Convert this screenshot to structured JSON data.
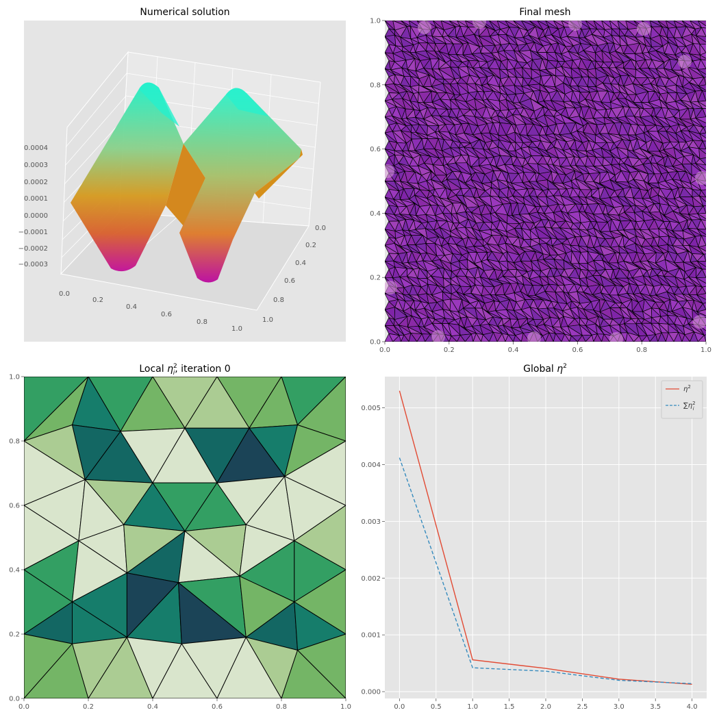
{
  "figure": {
    "panels": [
      {
        "title": "Numerical solution"
      },
      {
        "title": "Final mesh"
      },
      {
        "title": "Local η_i², iteration 0"
      },
      {
        "title": "Global η²"
      }
    ]
  },
  "colors": {
    "panel_bg": "#e5e5e5",
    "grid": "#ffffff",
    "eta_line": "#e24a33",
    "sum_line": "#348abd",
    "mesh_fill": "#8a2fb0",
    "mesh_edge": "#000000",
    "greens": [
      "#d9e5cc",
      "#abcc93",
      "#74b566",
      "#339f63",
      "#167d6b",
      "#136763",
      "#1b4457"
    ]
  },
  "chart_data": [
    {
      "type": "surface3d",
      "title": "Numerical solution",
      "x_ticks": [
        "0.0",
        "0.2",
        "0.4",
        "0.6",
        "0.8",
        "1.0"
      ],
      "y_ticks": [
        "0.0",
        "0.2",
        "0.4",
        "0.6",
        "0.8",
        "1.0"
      ],
      "z_ticks": [
        "0.0004",
        "0.0003",
        "0.0002",
        "0.0001",
        "0.0000",
        "−0.0001",
        "−0.0002",
        "−0.0003"
      ],
      "zlim": [
        -0.00035,
        0.00045
      ],
      "colormap": "spring-to-cyan"
    },
    {
      "type": "mesh",
      "title": "Final mesh",
      "x_ticks": [
        "0.0",
        "0.2",
        "0.4",
        "0.6",
        "0.8",
        "1.0"
      ],
      "y_ticks": [
        "0.0",
        "0.2",
        "0.4",
        "0.6",
        "0.8",
        "1.0"
      ],
      "xlim": [
        0,
        1
      ],
      "ylim": [
        0,
        1
      ]
    },
    {
      "type": "heatmap",
      "title": "Local η_i², iteration 0",
      "x_ticks": [
        "0.0",
        "0.2",
        "0.4",
        "0.6",
        "0.8",
        "1.0"
      ],
      "y_ticks": [
        "0.0",
        "0.2",
        "0.4",
        "0.6",
        "0.8",
        "1.0"
      ],
      "xlim": [
        0,
        1
      ],
      "ylim": [
        0,
        1
      ]
    },
    {
      "type": "line",
      "title": "Global η²",
      "x": [
        0,
        1,
        2,
        3,
        4
      ],
      "series": [
        {
          "name": "η²",
          "values": [
            0.0053,
            0.00056,
            0.00041,
            0.00022,
            0.00013
          ],
          "style": "solid"
        },
        {
          "name": "∑_i η_i²",
          "values": [
            0.00412,
            0.00042,
            0.00036,
            0.0002,
            0.00014
          ],
          "style": "dashed"
        }
      ],
      "x_ticks": [
        "0.0",
        "0.5",
        "1.0",
        "1.5",
        "2.0",
        "2.5",
        "3.0",
        "3.5",
        "4.0"
      ],
      "y_ticks": [
        "0.000",
        "0.001",
        "0.002",
        "0.003",
        "0.004",
        "0.005"
      ],
      "xlim": [
        -0.2,
        4.2
      ],
      "ylim": [
        -0.00012,
        0.00555
      ],
      "legend": "top-right",
      "grid": true
    }
  ]
}
